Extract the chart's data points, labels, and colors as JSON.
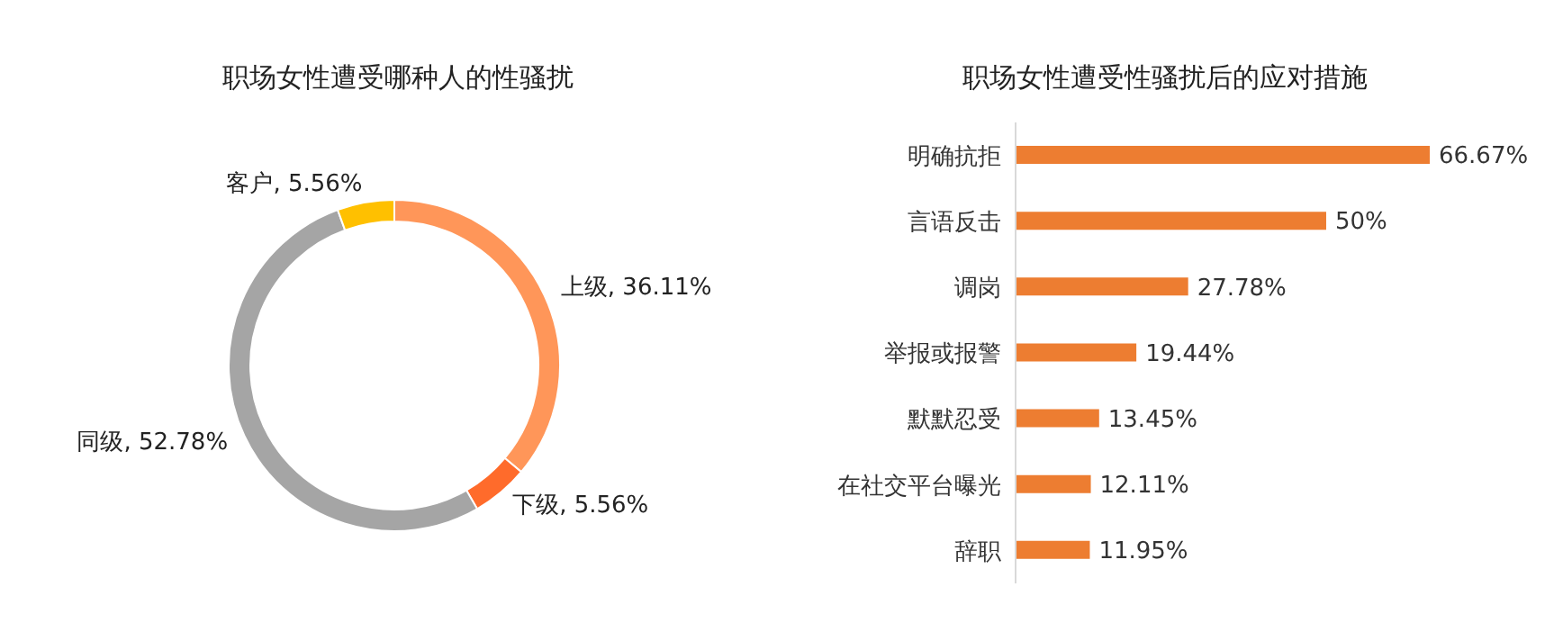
{
  "chart_data": [
    {
      "type": "donut",
      "title": "职场女性遭受哪种人的性骚扰",
      "categories": [
        "上级",
        "下级",
        "同级",
        "客户"
      ],
      "values": [
        36.11,
        5.56,
        52.78,
        5.56
      ],
      "colors": [
        "#ff9659",
        "#ff6b2b",
        "#a5a5a5",
        "#ffc000"
      ],
      "value_labels": [
        "36.11%",
        "5.56%",
        "52.78%",
        "5.56%"
      ]
    },
    {
      "type": "bar",
      "orientation": "horizontal",
      "title": "职场女性遭受性骚扰后的应对措施",
      "categories": [
        "明确抗拒",
        "言语反击",
        "调岗",
        "举报或报警",
        "默默忍受",
        "在社交平台曝光",
        "辞职"
      ],
      "values": [
        66.67,
        50,
        27.78,
        19.44,
        13.45,
        12.11,
        11.95
      ],
      "color": "#ed7d31",
      "value_labels": [
        "66.67%",
        "50%",
        "27.78%",
        "19.44%",
        "13.45%",
        "12.11%",
        "11.95%"
      ]
    }
  ]
}
